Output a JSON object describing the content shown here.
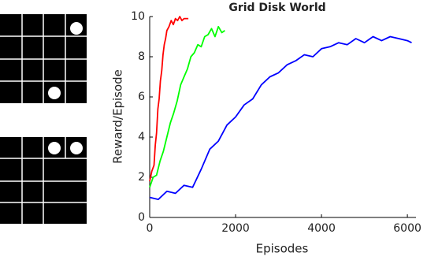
{
  "chart_data": {
    "type": "line",
    "title": "Grid Disk World",
    "xlabel": "Episodes",
    "ylabel": "Reward/Episode",
    "xlim": [
      0,
      6200
    ],
    "ylim": [
      0,
      10
    ],
    "xticks": [
      0,
      2000,
      4000,
      6000
    ],
    "yticks": [
      0,
      2,
      4,
      6,
      8,
      10
    ],
    "series": [
      {
        "color": "#ff0000",
        "x": [
          0,
          50,
          100,
          130,
          160,
          190,
          220,
          250,
          280,
          310,
          340,
          370,
          400,
          450,
          500,
          550,
          600,
          650,
          700,
          750,
          800,
          850,
          900
        ],
        "values": [
          1.8,
          2.3,
          2.6,
          3.6,
          4.2,
          5.4,
          5.9,
          6.8,
          7.3,
          8.1,
          8.6,
          8.9,
          9.3,
          9.5,
          9.8,
          9.6,
          9.9,
          9.8,
          10,
          9.8,
          9.9,
          9.9,
          9.9
        ]
      },
      {
        "color": "#00ff00",
        "x": [
          0,
          80,
          160,
          240,
          320,
          400,
          480,
          560,
          640,
          720,
          800,
          880,
          960,
          1040,
          1120,
          1200,
          1280,
          1360,
          1440,
          1520,
          1600,
          1680,
          1750
        ],
        "values": [
          1.5,
          2.0,
          2.1,
          2.8,
          3.3,
          4.0,
          4.7,
          5.2,
          5.8,
          6.6,
          7.0,
          7.4,
          8.0,
          8.2,
          8.6,
          8.5,
          9.0,
          9.1,
          9.4,
          9.0,
          9.5,
          9.2,
          9.3
        ]
      },
      {
        "color": "#0000ff",
        "x": [
          0,
          200,
          400,
          600,
          800,
          1000,
          1200,
          1400,
          1600,
          1800,
          2000,
          2200,
          2400,
          2600,
          2800,
          3000,
          3200,
          3400,
          3600,
          3800,
          4000,
          4200,
          4400,
          4600,
          4800,
          5000,
          5200,
          5400,
          5600,
          5800,
          6000,
          6100
        ],
        "values": [
          1.0,
          0.9,
          1.3,
          1.2,
          1.6,
          1.5,
          2.4,
          3.4,
          3.8,
          4.6,
          5.0,
          5.6,
          5.9,
          6.6,
          7.0,
          7.2,
          7.6,
          7.8,
          8.1,
          8.0,
          8.4,
          8.5,
          8.7,
          8.6,
          8.9,
          8.7,
          9.0,
          8.8,
          9.0,
          8.9,
          8.8,
          8.7
        ]
      }
    ]
  }
}
